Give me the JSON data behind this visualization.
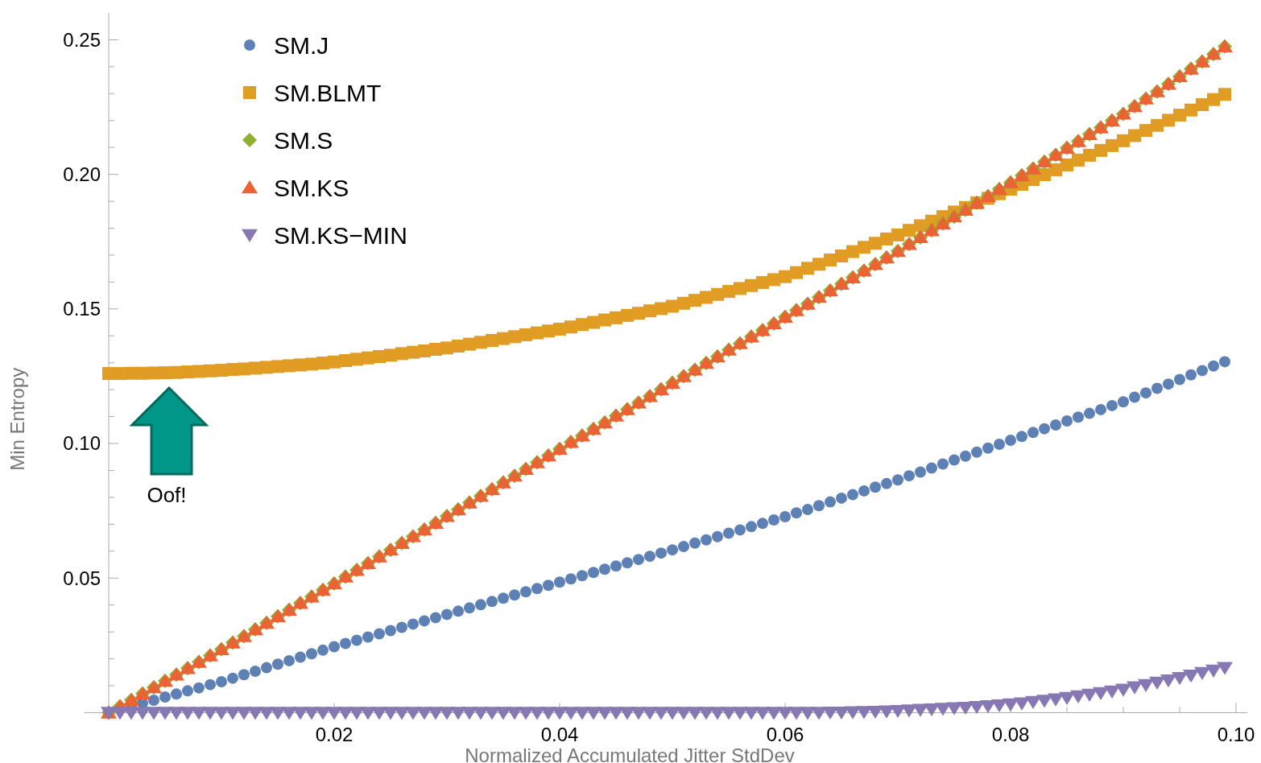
{
  "chart_data": {
    "type": "scatter",
    "xlabel": "Normalized Accumulated Jitter StdDev",
    "ylabel": "Min Entropy",
    "xlim": [
      0,
      0.101
    ],
    "ylim": [
      0,
      0.26
    ],
    "xticks": [
      {
        "value": 0.005,
        "label": null
      },
      {
        "value": 0.01,
        "label": null
      },
      {
        "value": 0.015,
        "label": null
      },
      0.02,
      {
        "value": 0.025,
        "label": null
      },
      {
        "value": 0.03,
        "label": null
      },
      {
        "value": 0.035,
        "label": null
      },
      0.04,
      {
        "value": 0.045,
        "label": null
      },
      {
        "value": 0.05,
        "label": null
      },
      {
        "value": 0.055,
        "label": null
      },
      0.06,
      {
        "value": 0.065,
        "label": null
      },
      {
        "value": 0.07,
        "label": null
      },
      {
        "value": 0.075,
        "label": null
      },
      0.08,
      {
        "value": 0.085,
        "label": null
      },
      {
        "value": 0.09,
        "label": null
      },
      {
        "value": 0.095,
        "label": null
      },
      {
        "value": 0.1,
        "label": "0.10"
      }
    ],
    "yticks": [
      {
        "value": 0.01,
        "label": null
      },
      {
        "value": 0.02,
        "label": null
      },
      {
        "value": 0.03,
        "label": null
      },
      {
        "value": 0.04,
        "label": null
      },
      0.05,
      {
        "value": 0.06,
        "label": null
      },
      {
        "value": 0.07,
        "label": null
      },
      {
        "value": 0.08,
        "label": null
      },
      {
        "value": 0.09,
        "label": null
      },
      {
        "value": 0.1,
        "label": "0.10"
      },
      {
        "value": 0.11,
        "label": null
      },
      {
        "value": 0.12,
        "label": null
      },
      {
        "value": 0.13,
        "label": null
      },
      {
        "value": 0.14,
        "label": null
      },
      0.15,
      {
        "value": 0.16,
        "label": null
      },
      {
        "value": 0.17,
        "label": null
      },
      {
        "value": 0.18,
        "label": null
      },
      {
        "value": 0.19,
        "label": null
      },
      {
        "value": 0.2,
        "label": "0.20"
      },
      {
        "value": 0.21,
        "label": null
      },
      {
        "value": 0.22,
        "label": null
      },
      {
        "value": 0.23,
        "label": null
      },
      {
        "value": 0.24,
        "label": null
      },
      0.25
    ],
    "legend": "top left",
    "grid": false,
    "annotations": [
      "Oof!"
    ],
    "x": [
      0,
      0.001,
      0.002,
      0.003,
      0.004,
      0.005,
      0.006,
      0.007,
      0.008,
      0.009,
      0.01,
      0.011,
      0.012,
      0.013,
      0.014,
      0.015,
      0.016,
      0.017,
      0.018,
      0.019,
      0.02,
      0.021,
      0.022,
      0.023,
      0.024,
      0.025,
      0.026,
      0.027,
      0.028,
      0.029,
      0.03,
      0.031,
      0.032,
      0.033,
      0.034,
      0.035,
      0.036,
      0.037,
      0.038,
      0.039,
      0.04,
      0.041,
      0.042,
      0.043,
      0.044,
      0.045,
      0.046,
      0.047,
      0.048,
      0.049,
      0.05,
      0.051,
      0.052,
      0.053,
      0.054,
      0.055,
      0.056,
      0.057,
      0.058,
      0.059,
      0.06,
      0.061,
      0.062,
      0.063,
      0.064,
      0.065,
      0.066,
      0.067,
      0.068,
      0.069,
      0.07,
      0.071,
      0.072,
      0.073,
      0.074,
      0.075,
      0.076,
      0.077,
      0.078,
      0.079,
      0.08,
      0.081,
      0.082,
      0.083,
      0.084,
      0.085,
      0.086,
      0.087,
      0.088,
      0.089,
      0.09,
      0.091,
      0.092,
      0.093,
      0.094,
      0.095,
      0.096,
      0.097,
      0.098,
      0.099
    ],
    "series": [
      {
        "name": "SM.J",
        "color": "#5e81b5",
        "marker": "circle",
        "values": [
          null,
          null,
          0.0023,
          0.0035,
          0.0046,
          0.0058,
          0.0069,
          0.0081,
          0.0092,
          0.0104,
          0.0115,
          0.0128,
          0.0141,
          0.0154,
          0.0167,
          0.018,
          0.0193,
          0.0206,
          0.0219,
          0.0232,
          0.0245,
          0.0257,
          0.0269,
          0.0281,
          0.0293,
          0.0305,
          0.0317,
          0.0329,
          0.0341,
          0.0353,
          0.0365,
          0.0377,
          0.0389,
          0.0401,
          0.0413,
          0.0425,
          0.0437,
          0.0449,
          0.0461,
          0.0473,
          0.0485,
          0.0497,
          0.0509,
          0.0521,
          0.0533,
          0.0545,
          0.0557,
          0.0569,
          0.0581,
          0.0593,
          0.0605,
          0.0617,
          0.063,
          0.0642,
          0.0654,
          0.0667,
          0.0679,
          0.0691,
          0.0703,
          0.0716,
          0.0728,
          0.0742,
          0.0755,
          0.0769,
          0.0783,
          0.0797,
          0.081,
          0.0824,
          0.0838,
          0.0851,
          0.0865,
          0.088,
          0.0894,
          0.0909,
          0.0924,
          0.0939,
          0.0953,
          0.0968,
          0.0983,
          0.0997,
          0.1012,
          0.1026,
          0.1041,
          0.1055,
          0.1069,
          0.1084,
          0.1098,
          0.1112,
          0.1126,
          0.1141,
          0.1155,
          0.1172,
          0.1188,
          0.1205,
          0.1221,
          0.1238,
          0.1255,
          0.1271,
          0.1288,
          0.1304
        ]
      },
      {
        "name": "SM.BLMT",
        "color": "#e19c24",
        "marker": "square",
        "values": [
          0.126,
          0.126,
          0.1261,
          0.1261,
          0.1262,
          0.1263,
          0.1264,
          0.1266,
          0.1268,
          0.127,
          0.1272,
          0.1275,
          0.1277,
          0.128,
          0.1283,
          0.1286,
          0.1289,
          0.1292,
          0.1295,
          0.1299,
          0.1303,
          0.1308,
          0.1313,
          0.1318,
          0.1323,
          0.1328,
          0.1334,
          0.1339,
          0.1344,
          0.135,
          0.1355,
          0.1362,
          0.1369,
          0.1376,
          0.1383,
          0.139,
          0.1397,
          0.1404,
          0.1411,
          0.1418,
          0.1425,
          0.1433,
          0.1442,
          0.145,
          0.1459,
          0.1467,
          0.1476,
          0.1484,
          0.1493,
          0.1501,
          0.151,
          0.1521,
          0.1532,
          0.1543,
          0.1554,
          0.1565,
          0.1576,
          0.1587,
          0.1598,
          0.1609,
          0.162,
          0.1635,
          0.1651,
          0.1666,
          0.1682,
          0.1697,
          0.1713,
          0.1729,
          0.1744,
          0.176,
          0.1775,
          0.1792,
          0.1809,
          0.1826,
          0.1843,
          0.186,
          0.1877,
          0.1894,
          0.1911,
          0.1928,
          0.1945,
          0.1963,
          0.1981,
          0.1999,
          0.2017,
          0.2035,
          0.2053,
          0.2071,
          0.2089,
          0.2107,
          0.2125,
          0.2144,
          0.2163,
          0.2182,
          0.2201,
          0.222,
          0.2239,
          0.2259,
          0.2278,
          0.2297
        ]
      },
      {
        "name": "SM.S",
        "color": "#8fb032",
        "marker": "diamond",
        "values": [
          0,
          0.0024,
          0.0047,
          0.0071,
          0.0094,
          0.0118,
          0.0141,
          0.0165,
          0.0188,
          0.0212,
          0.0235,
          0.026,
          0.0284,
          0.0309,
          0.0333,
          0.0358,
          0.0382,
          0.0407,
          0.0431,
          0.0456,
          0.048,
          0.0505,
          0.053,
          0.0555,
          0.058,
          0.0605,
          0.063,
          0.0655,
          0.068,
          0.0705,
          0.073,
          0.0755,
          0.078,
          0.0805,
          0.083,
          0.0855,
          0.088,
          0.0905,
          0.093,
          0.0955,
          0.098,
          0.1005,
          0.1029,
          0.1054,
          0.1078,
          0.1103,
          0.1127,
          0.1152,
          0.1176,
          0.1201,
          0.1225,
          0.125,
          0.1274,
          0.1299,
          0.1323,
          0.1348,
          0.1372,
          0.1397,
          0.1421,
          0.1446,
          0.147,
          0.1495,
          0.1519,
          0.1544,
          0.1568,
          0.1593,
          0.1617,
          0.1642,
          0.1666,
          0.1691,
          0.1715,
          0.1741,
          0.1766,
          0.1792,
          0.1817,
          0.1843,
          0.1868,
          0.1894,
          0.1919,
          0.1945,
          0.197,
          0.1996,
          0.2021,
          0.2047,
          0.2072,
          0.2098,
          0.2123,
          0.2149,
          0.2174,
          0.22,
          0.2225,
          0.2253,
          0.2281,
          0.2308,
          0.2336,
          0.2364,
          0.2392,
          0.2419,
          0.2447,
          0.2475
        ]
      },
      {
        "name": "SM.KS",
        "color": "#eb6235",
        "marker": "triangle",
        "values": [
          0,
          0.0024,
          0.0047,
          0.0071,
          0.0094,
          0.0118,
          0.0141,
          0.0165,
          0.0188,
          0.0212,
          0.0235,
          0.026,
          0.0284,
          0.0309,
          0.0333,
          0.0358,
          0.0382,
          0.0407,
          0.0431,
          0.0456,
          0.048,
          0.0505,
          0.053,
          0.0555,
          0.058,
          0.0605,
          0.063,
          0.0655,
          0.068,
          0.0705,
          0.073,
          0.0755,
          0.078,
          0.0805,
          0.083,
          0.0855,
          0.088,
          0.0905,
          0.093,
          0.0955,
          0.098,
          0.1005,
          0.1029,
          0.1054,
          0.1078,
          0.1103,
          0.1127,
          0.1152,
          0.1176,
          0.1201,
          0.1225,
          0.125,
          0.1274,
          0.1299,
          0.1323,
          0.1348,
          0.1372,
          0.1397,
          0.1421,
          0.1446,
          0.147,
          0.1495,
          0.1519,
          0.1544,
          0.1568,
          0.1593,
          0.1617,
          0.1642,
          0.1666,
          0.1691,
          0.1715,
          0.1741,
          0.1766,
          0.1792,
          0.1817,
          0.1843,
          0.1868,
          0.1894,
          0.1919,
          0.1945,
          0.197,
          0.1996,
          0.2021,
          0.2047,
          0.2072,
          0.2098,
          0.2123,
          0.2149,
          0.2174,
          0.22,
          0.2225,
          0.2253,
          0.2281,
          0.2308,
          0.2336,
          0.2364,
          0.2392,
          0.2419,
          0.2447,
          0.2475
        ]
      },
      {
        "name": "SM.KS−MIN",
        "color": "#8778b3",
        "marker": "triangle-down",
        "values": [
          0,
          0,
          0,
          0,
          0,
          0,
          0,
          0,
          0,
          0,
          0,
          0,
          0,
          0,
          0,
          0,
          0,
          0,
          0,
          0,
          0,
          0,
          0,
          0,
          0,
          0,
          0,
          0,
          0,
          0,
          0,
          0,
          0,
          0,
          0,
          0,
          0,
          0,
          0,
          0,
          0,
          0,
          0,
          0,
          0,
          0,
          0,
          0,
          0,
          0,
          0,
          0,
          0,
          0,
          0,
          0,
          0,
          0,
          0,
          0,
          0,
          0,
          0,
          0,
          0.0001,
          0.0001,
          0.0002,
          0.0003,
          0.0004,
          0.0005,
          0.0007,
          0.0009,
          0.0011,
          0.0013,
          0.0015,
          0.0017,
          0.0019,
          0.0022,
          0.0025,
          0.0028,
          0.0031,
          0.0035,
          0.004,
          0.0045,
          0.005,
          0.0055,
          0.0061,
          0.0067,
          0.0073,
          0.0079,
          0.0086,
          0.0095,
          0.0103,
          0.0112,
          0.012,
          0.0129,
          0.0138,
          0.0148,
          0.0157,
          0.0167
        ]
      }
    ]
  }
}
